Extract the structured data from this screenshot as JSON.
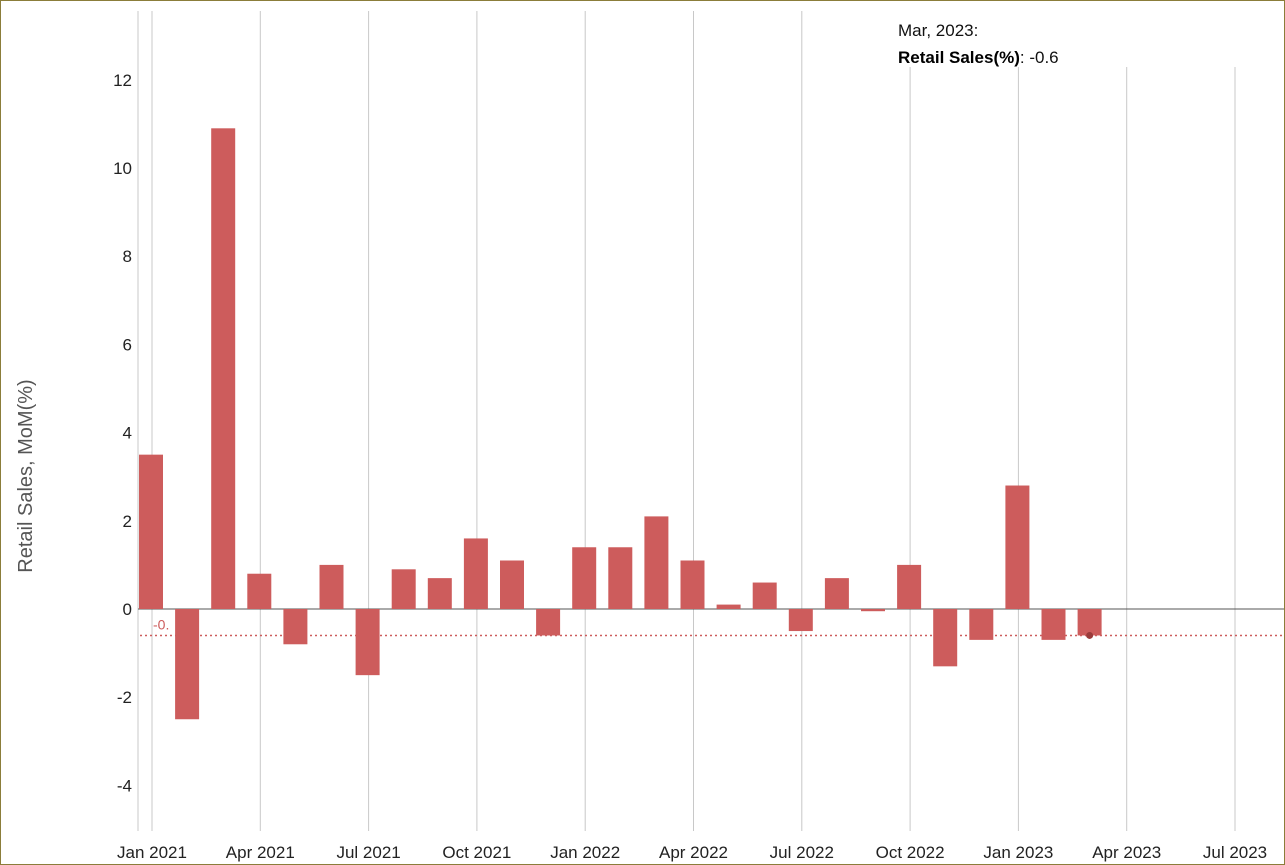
{
  "chart_data": {
    "type": "bar",
    "ylabel": "Retail Sales, MoM(%)",
    "ylim": [
      -5,
      13.5
    ],
    "yticks": [
      -4,
      -2,
      0,
      2,
      4,
      6,
      8,
      10,
      12
    ],
    "x_tick_labels": [
      "Jan 2021",
      "Apr 2021",
      "Jul 2021",
      "Oct 2021",
      "Jan 2022",
      "Apr 2022",
      "Jul 2022",
      "Oct 2022",
      "Jan 2023",
      "Apr 2023",
      "Jul 2023"
    ],
    "categories": [
      "Jan 2021",
      "Feb 2021",
      "Mar 2021",
      "Apr 2021",
      "May 2021",
      "Jun 2021",
      "Jul 2021",
      "Aug 2021",
      "Sep 2021",
      "Oct 2021",
      "Nov 2021",
      "Dec 2021",
      "Jan 2022",
      "Feb 2022",
      "Mar 2022",
      "Apr 2022",
      "May 2022",
      "Jun 2022",
      "Jul 2022",
      "Aug 2022",
      "Sep 2022",
      "Oct 2022",
      "Nov 2022",
      "Dec 2022",
      "Jan 2023",
      "Feb 2023",
      "Mar 2023"
    ],
    "series": [
      {
        "name": "Retail Sales(%)",
        "color": "#cd5c5c",
        "values": [
          3.5,
          -2.5,
          10.9,
          0.8,
          -0.8,
          1.0,
          -1.5,
          0.9,
          0.7,
          1.6,
          1.1,
          -0.6,
          1.4,
          1.4,
          2.1,
          1.1,
          0.1,
          0.6,
          -0.5,
          0.7,
          -0.05,
          1.0,
          -1.3,
          -0.7,
          2.8,
          -0.7,
          -0.6
        ]
      }
    ],
    "reference_line": {
      "value": -0.6,
      "label": "-0."
    },
    "tooltip": {
      "date": "Mar, 2023:",
      "series_name": "Retail Sales(%)",
      "separator": ": ",
      "value": "-0.6"
    },
    "grid": "vertical",
    "legend": "none"
  }
}
